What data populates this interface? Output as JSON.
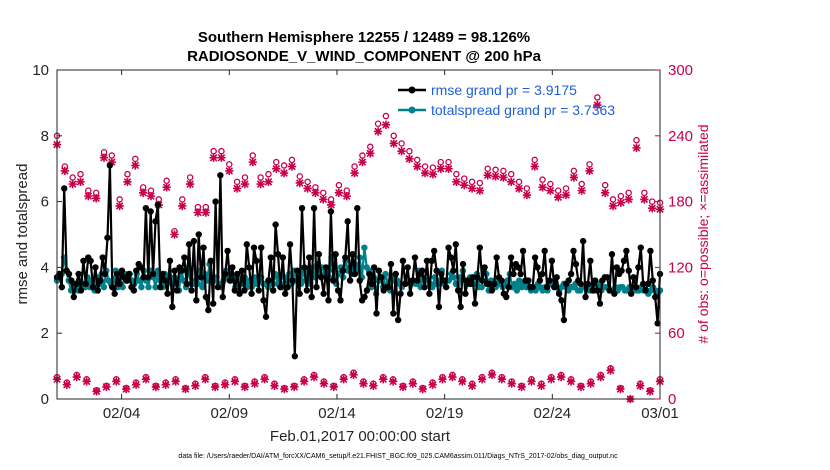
{
  "chart_data": {
    "type": "line",
    "title_line1": "Southern Hemisphere 12255 / 12489 = 98.126%",
    "title_line2": "RADIOSONDE_V_WIND_COMPONENT @ 200 hPa",
    "xlabel": "Feb.01,2017 00:00:00 start",
    "ylabel_left": "rmse and totalspread",
    "ylabel_right": "# of obs: o=possible; ×=assimilated",
    "footnote": "data file: /Users/raeder/DAI/ATM_forcXX/CAM6_setup/f.e21.FHIST_BGC.f09_025.CAM6assim.011/Diags_NTrS_2017-02/obs_diag_output.nc",
    "x_range": [
      1.0,
      29.0
    ],
    "x_ticks": [
      {
        "value": 4,
        "label": "02/04"
      },
      {
        "value": 9,
        "label": "02/09"
      },
      {
        "value": 14,
        "label": "02/14"
      },
      {
        "value": 19,
        "label": "02/19"
      },
      {
        "value": 24,
        "label": "02/24"
      },
      {
        "value": 29,
        "label": "03/01"
      }
    ],
    "y_left": {
      "range": [
        0,
        10
      ],
      "ticks": [
        "0",
        "2",
        "4",
        "6",
        "8",
        "10"
      ]
    },
    "y_right": {
      "range": [
        0,
        300
      ],
      "ticks": [
        "0",
        "60",
        "120",
        "180",
        "240",
        "300"
      ]
    },
    "colors": {
      "rmse": "#000000",
      "spread": "#00808b",
      "obs": "#c8004b",
      "legend_text": "#1f5fd6"
    },
    "series": [
      {
        "name": "rmse grand pr = 3.9175",
        "axis": "left",
        "values": [
          3.7,
          3.8,
          3.4,
          6.4,
          3.9,
          3.8,
          3.6,
          3.1,
          3.5,
          3.8,
          3.3,
          4.2,
          3.5,
          4.3,
          4.2,
          3.4,
          4.0,
          3.3,
          3.6,
          4.3,
          3.8,
          4.9,
          7.1,
          3.4,
          3.2,
          3.8,
          3.5,
          3.9,
          3.7,
          3.6,
          3.8,
          3.4,
          3.3,
          3.9,
          4.1,
          4.0,
          3.7,
          5.8,
          3.7,
          5.7,
          3.8,
          5.4,
          5.9,
          3.4,
          3.8,
          3.6,
          3.2,
          4.2,
          2.8,
          3.9,
          3.3,
          4.0,
          3.9,
          4.3,
          3.5,
          4.7,
          3.3,
          4.8,
          3.0,
          5.0,
          3.7,
          4.6,
          3.1,
          2.7,
          4.2,
          2.9,
          6.0,
          3.4,
          6.8,
          3.1,
          3.8,
          4.5,
          3.6,
          4.0,
          3.3,
          3.8,
          3.2,
          3.9,
          3.3,
          4.7,
          4.0,
          3.2,
          4.6,
          4.2,
          3.3,
          4.6,
          3.0,
          2.5,
          3.6,
          4.3,
          3.3,
          5.3,
          4.4,
          3.4,
          4.3,
          3.2,
          3.4,
          4.7,
          3.6,
          1.3,
          3.9,
          3.2,
          5.8,
          4.0,
          3.3,
          4.3,
          3.1,
          5.8,
          3.4,
          4.4,
          3.7,
          3.2,
          4.0,
          3.0,
          5.7,
          3.6,
          4.4,
          3.3,
          3.0,
          3.9,
          4.3,
          5.4,
          3.6,
          4.4,
          3.8,
          5.8,
          3.6,
          3.0,
          3.1,
          3.3,
          3.8,
          3.5,
          4.0,
          2.6,
          3.9,
          3.7,
          3.3,
          3.4,
          3.4,
          4.1,
          2.6,
          3.8,
          2.4,
          3.2,
          4.2,
          3.5,
          4.0,
          3.2,
          3.6,
          4.3,
          3.6,
          3.8,
          3.9,
          3.4,
          4.2,
          3.2,
          4.2,
          4.5,
          3.9,
          2.8,
          3.8,
          3.6,
          3.4,
          4.6,
          4.3,
          3.9,
          4.7,
          3.3,
          2.8,
          4.1,
          3.2,
          3.6,
          3.5,
          3.7,
          2.9,
          3.7,
          4.6,
          3.6,
          4.0,
          3.5,
          3.5,
          3.3,
          3.5,
          4.3,
          3.7,
          3.6,
          3.2,
          3.1,
          3.4,
          4.3,
          3.8,
          4.1,
          4.0,
          3.8,
          4.5,
          3.6,
          3.6,
          3.4,
          3.4,
          4.3,
          4.0,
          3.6,
          3.8,
          4.5,
          3.4,
          3.6,
          4.2,
          3.4,
          3.7,
          3.2,
          3.0,
          2.4,
          3.5,
          3.6,
          3.8,
          4.5,
          4.1,
          3.6,
          3.5,
          4.8,
          3.1,
          3.5,
          4.2,
          3.3,
          3.6,
          3.3,
          2.9,
          3.6,
          3.7,
          3.7,
          3.3,
          4.4,
          3.2,
          4.0,
          3.8,
          3.9,
          4.2,
          4.5,
          3.9,
          3.2,
          3.7,
          3.4,
          4.0,
          4.6,
          3.5,
          3.3,
          3.5,
          4.5,
          3.6,
          3.1,
          2.3,
          3.8
        ]
      },
      {
        "name": "totalspread grand pr = 3.7363",
        "axis": "left",
        "values": [
          3.6,
          3.8,
          3.8,
          4.3,
          3.9,
          3.6,
          3.3,
          3.5,
          3.4,
          3.3,
          3.6,
          3.5,
          3.4,
          3.7,
          3.4,
          3.6,
          3.3,
          3.7,
          3.5,
          3.8,
          3.4,
          3.9,
          3.6,
          3.5,
          3.6,
          3.9,
          3.4,
          3.7,
          3.4,
          3.8,
          3.6,
          3.8,
          3.6,
          3.5,
          3.8,
          3.6,
          3.4,
          3.9,
          3.6,
          3.4,
          3.9,
          3.7,
          3.4,
          3.9,
          3.6,
          3.4,
          3.8,
          3.7,
          3.6,
          3.5,
          3.7,
          3.5,
          3.3,
          3.9,
          3.6,
          3.4,
          4.0,
          3.5,
          3.5,
          3.6,
          3.5,
          3.9,
          3.4,
          3.8,
          3.6,
          4.1,
          3.6,
          3.6,
          3.7,
          3.5,
          3.4,
          3.6,
          3.9,
          3.7,
          3.8,
          3.6,
          3.4,
          3.7,
          3.6,
          3.5,
          3.7,
          3.4,
          3.6,
          3.4,
          3.7,
          3.5,
          3.6,
          3.7,
          3.5,
          3.5,
          3.4,
          3.6,
          3.5,
          3.8,
          3.5,
          3.7,
          3.4,
          3.7,
          3.6,
          3.8,
          3.5,
          3.9,
          3.6,
          3.8,
          3.5,
          3.9,
          3.6,
          3.9,
          3.5,
          4.0,
          3.7,
          4.1,
          3.8,
          4.0,
          3.8,
          3.9,
          3.7,
          4.3,
          3.9,
          3.5,
          3.8,
          4.0,
          3.7,
          4.2,
          3.9,
          4.0,
          3.8,
          4.1,
          3.9,
          4.3,
          3.7,
          4.6,
          4.0,
          3.9,
          3.4,
          3.7,
          3.2,
          3.6,
          3.6,
          3.4,
          3.8,
          3.5,
          3.3,
          3.6,
          3.7,
          3.6,
          3.5,
          3.4,
          3.5,
          3.7,
          3.6,
          3.5,
          3.6,
          3.5,
          3.9,
          3.4,
          3.7,
          3.6,
          3.6,
          3.5,
          3.4,
          3.7,
          3.5,
          3.6,
          3.9,
          3.5,
          3.6,
          3.6,
          3.8,
          3.7,
          3.5,
          3.3,
          3.7,
          3.9,
          3.6,
          3.5,
          3.7,
          3.5,
          3.5,
          3.8,
          3.4,
          3.4,
          3.9,
          3.8,
          3.3,
          3.6,
          3.5,
          3.4,
          3.6,
          3.5,
          3.4,
          3.5,
          3.6,
          3.8,
          3.4,
          3.5,
          3.3,
          3.6,
          3.4,
          3.5,
          3.4,
          3.6,
          3.3,
          3.4,
          3.3,
          3.5,
          3.4,
          3.3,
          3.4,
          3.3,
          3.5,
          3.5,
          3.5,
          3.4,
          3.3,
          3.4,
          3.5,
          3.4,
          3.3,
          3.4,
          3.4,
          3.5,
          3.3,
          3.3,
          3.4,
          3.4,
          3.4,
          3.3,
          3.4,
          3.3,
          3.3,
          3.5,
          3.3,
          3.4,
          3.4,
          3.4,
          3.3,
          3.3,
          3.4,
          3.3,
          3.4,
          3.4,
          3.3,
          3.3,
          3.4,
          3.3,
          3.4,
          3.3,
          3.3,
          3.4,
          3.3,
          3.3,
          3.2,
          3.3,
          3.4,
          3.3,
          3.2,
          3.3
        ]
      }
    ],
    "obs_possible_high": [
      240,
      212,
      202,
      205,
      190,
      188,
      225,
      222,
      182,
      205,
      219,
      193,
      190,
      182,
      199,
      153,
      182,
      202,
      175,
      175,
      226,
      226,
      214,
      198,
      202,
      222,
      202,
      205,
      216,
      213,
      218,
      203,
      198,
      193,
      188,
      182,
      195,
      190,
      212,
      222,
      230,
      251,
      258,
      240,
      233,
      226,
      218,
      212,
      211,
      216,
      216,
      205,
      201,
      198,
      197,
      210,
      209,
      208,
      205,
      198,
      192,
      218,
      200,
      196,
      190,
      192,
      208,
      196,
      214,
      275,
      195,
      182,
      185,
      188,
      236,
      188,
      180,
      179
    ],
    "obs_assimilated_high": [
      232,
      208,
      196,
      198,
      185,
      183,
      220,
      216,
      176,
      198,
      213,
      188,
      185,
      177,
      193,
      150,
      176,
      196,
      170,
      170,
      220,
      220,
      208,
      192,
      196,
      216,
      196,
      198,
      210,
      206,
      212,
      197,
      192,
      188,
      182,
      177,
      188,
      185,
      206,
      216,
      224,
      244,
      250,
      233,
      226,
      219,
      212,
      206,
      205,
      210,
      210,
      198,
      195,
      192,
      190,
      204,
      203,
      202,
      198,
      192,
      186,
      212,
      193,
      190,
      184,
      186,
      202,
      190,
      208,
      268,
      188,
      176,
      179,
      182,
      229,
      182,
      174,
      173
    ],
    "obs_possible_low": [
      20,
      15,
      22,
      18,
      8,
      12,
      18,
      10,
      15,
      20,
      12,
      15,
      18,
      10,
      14,
      20,
      12,
      15,
      18,
      12,
      16,
      20,
      14,
      10,
      12,
      18,
      22,
      16,
      12,
      20,
      24,
      16,
      14,
      20,
      18,
      12,
      16,
      10,
      15,
      20,
      22,
      18,
      14,
      20,
      24,
      20,
      16,
      12,
      18,
      14,
      20,
      22,
      18,
      12,
      16,
      22,
      28,
      10,
      0,
      14,
      8,
      18
    ],
    "obs_assimilated_low": [
      18,
      13,
      20,
      16,
      7,
      11,
      16,
      9,
      13,
      18,
      11,
      13,
      16,
      9,
      12,
      18,
      11,
      13,
      16,
      11,
      14,
      18,
      12,
      9,
      11,
      16,
      20,
      14,
      11,
      18,
      22,
      14,
      12,
      18,
      16,
      11,
      14,
      9,
      13,
      18,
      20,
      16,
      12,
      18,
      22,
      18,
      14,
      11,
      16,
      12,
      18,
      20,
      16,
      11,
      14,
      20,
      26,
      9,
      0,
      12,
      7,
      16
    ]
  }
}
